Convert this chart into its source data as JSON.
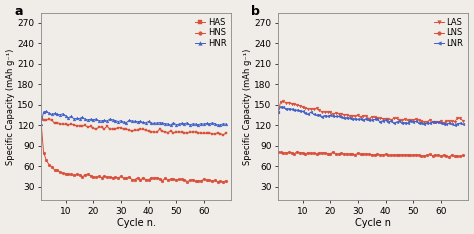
{
  "panel_a_label": "a",
  "panel_b_label": "b",
  "xlabel_a": "Cycle n.",
  "xlabel_b": "Cycle n",
  "ylabel": "Specific Capacity (mAh g⁻¹)",
  "ylim": [
    10,
    285
  ],
  "yticks": [
    30,
    60,
    90,
    120,
    150,
    180,
    210,
    240,
    270
  ],
  "xlim": [
    1,
    70
  ],
  "xticks": [
    10,
    20,
    30,
    40,
    50,
    60
  ],
  "red_color": "#d94f3a",
  "blue_color": "#4060c8",
  "legend_a": [
    "HAS",
    "HNS",
    "HNR"
  ],
  "legend_b": [
    "LAS",
    "LNS",
    "LNR"
  ],
  "figsize": [
    4.74,
    2.34
  ],
  "dpi": 100,
  "n_cycles": 68,
  "HAS_vals": [
    130,
    128,
    127,
    126,
    125,
    124,
    123,
    122,
    122,
    121,
    121,
    120,
    120,
    119,
    119,
    119,
    118,
    118,
    118,
    117,
    117,
    117,
    116,
    116,
    116,
    116,
    115,
    115,
    115,
    115,
    114,
    114,
    114,
    114,
    113,
    113,
    113,
    113,
    113,
    112,
    112,
    112,
    112,
    112,
    112,
    111,
    111,
    111,
    111,
    111,
    111,
    110,
    110,
    110,
    110,
    110,
    110,
    109,
    109,
    109,
    109,
    109,
    109,
    109,
    109,
    108,
    108,
    108
  ],
  "HAS_extra": [
    100,
    96
  ],
  "HNS_vals": [
    130,
    80,
    68,
    62,
    58,
    56,
    54,
    52,
    51,
    50,
    49,
    48,
    48,
    47,
    47,
    46,
    46,
    46,
    45,
    45,
    45,
    44,
    44,
    44,
    44,
    43,
    43,
    43,
    43,
    43,
    42,
    42,
    42,
    42,
    42,
    42,
    41,
    41,
    41,
    41,
    41,
    41,
    41,
    41,
    40,
    40,
    40,
    40,
    40,
    40,
    40,
    40,
    40,
    39,
    39,
    39,
    39,
    39,
    39,
    39,
    39,
    39,
    39,
    39,
    38,
    38,
    38,
    38
  ],
  "HNR_vals": [
    121,
    140,
    140,
    139,
    138,
    137,
    136,
    135,
    134,
    133,
    132,
    132,
    131,
    131,
    130,
    130,
    130,
    129,
    129,
    129,
    128,
    128,
    128,
    128,
    127,
    127,
    127,
    127,
    127,
    126,
    126,
    126,
    126,
    126,
    125,
    125,
    125,
    125,
    125,
    125,
    124,
    124,
    124,
    124,
    124,
    124,
    123,
    123,
    123,
    123,
    123,
    123,
    123,
    122,
    122,
    122,
    122,
    122,
    122,
    122,
    122,
    121,
    121,
    121,
    121,
    121,
    121,
    121
  ],
  "LAS_vals": [
    137,
    156,
    155,
    154,
    153,
    152,
    150,
    149,
    148,
    147,
    146,
    145,
    144,
    143,
    142,
    142,
    141,
    140,
    140,
    139,
    138,
    138,
    137,
    137,
    136,
    136,
    135,
    135,
    134,
    134,
    133,
    133,
    132,
    132,
    132,
    131,
    131,
    131,
    130,
    130,
    130,
    130,
    129,
    129,
    129,
    129,
    128,
    128,
    128,
    128,
    128,
    127,
    127,
    127,
    127,
    127,
    127,
    126,
    126,
    126,
    126,
    126,
    126,
    126,
    126,
    130,
    130,
    130
  ],
  "LNS_vals": [
    80,
    80,
    80,
    80,
    80,
    80,
    80,
    80,
    80,
    79,
    79,
    79,
    79,
    79,
    79,
    79,
    79,
    79,
    79,
    79,
    79,
    79,
    78,
    78,
    78,
    78,
    78,
    78,
    78,
    78,
    78,
    78,
    78,
    78,
    78,
    78,
    77,
    77,
    77,
    77,
    77,
    77,
    77,
    77,
    77,
    77,
    77,
    77,
    77,
    77,
    77,
    77,
    76,
    76,
    76,
    76,
    76,
    76,
    76,
    76,
    76,
    76,
    76,
    76,
    76,
    75,
    75,
    75
  ],
  "LNR_vals": [
    138,
    148,
    147,
    146,
    145,
    144,
    143,
    142,
    141,
    140,
    139,
    138,
    138,
    137,
    136,
    136,
    135,
    135,
    134,
    134,
    133,
    133,
    132,
    132,
    131,
    131,
    131,
    130,
    130,
    130,
    129,
    129,
    129,
    128,
    128,
    128,
    128,
    127,
    127,
    127,
    127,
    126,
    126,
    126,
    126,
    126,
    125,
    125,
    125,
    125,
    125,
    124,
    124,
    124,
    124,
    124,
    124,
    123,
    123,
    123,
    123,
    123,
    122,
    122,
    122,
    122,
    122,
    122
  ]
}
